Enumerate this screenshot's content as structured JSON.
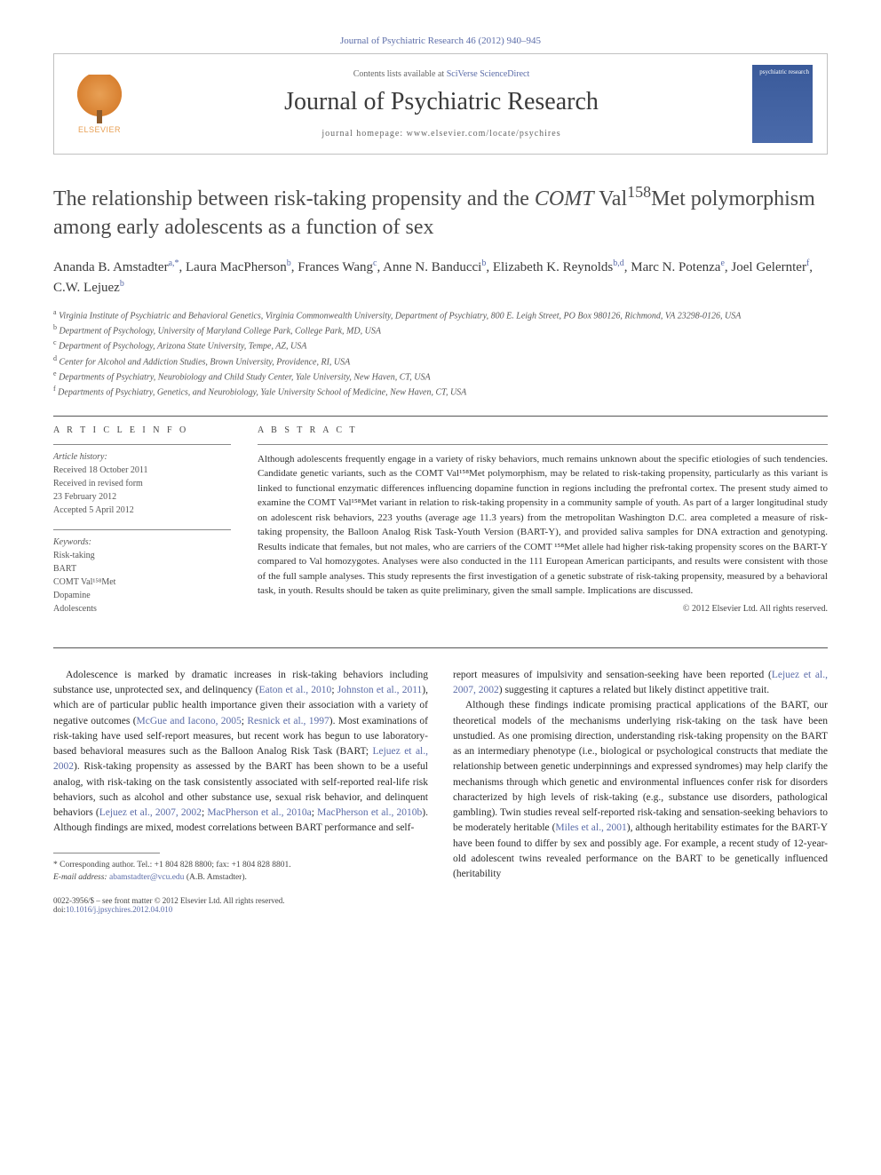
{
  "header": {
    "citation": "Journal of Psychiatric Research 46 (2012) 940–945",
    "contents_prefix": "Contents lists available at ",
    "contents_link": "SciVerse ScienceDirect",
    "journal_name": "Journal of Psychiatric Research",
    "homepage_prefix": "journal homepage: ",
    "homepage_url": "www.elsevier.com/locate/psychires",
    "publisher": "ELSEVIER",
    "cover_label": "psychiatric research"
  },
  "title": {
    "pre": "The relationship between risk-taking propensity and the ",
    "gene": "COMT",
    "mid": " Val",
    "sup": "158",
    "post": "Met polymorphism among early adolescents as a function of sex"
  },
  "authors": [
    {
      "name": "Ananda B. Amstadter",
      "aff": "a,*"
    },
    {
      "name": "Laura MacPherson",
      "aff": "b"
    },
    {
      "name": "Frances Wang",
      "aff": "c"
    },
    {
      "name": "Anne N. Banducci",
      "aff": "b"
    },
    {
      "name": "Elizabeth K. Reynolds",
      "aff": "b,d"
    },
    {
      "name": "Marc N. Potenza",
      "aff": "e"
    },
    {
      "name": "Joel Gelernter",
      "aff": "f"
    },
    {
      "name": "C.W. Lejuez",
      "aff": "b"
    }
  ],
  "affiliations": [
    {
      "key": "a",
      "text": "Virginia Institute of Psychiatric and Behavioral Genetics, Virginia Commonwealth University, Department of Psychiatry, 800 E. Leigh Street, PO Box 980126, Richmond, VA 23298-0126, USA"
    },
    {
      "key": "b",
      "text": "Department of Psychology, University of Maryland College Park, College Park, MD, USA"
    },
    {
      "key": "c",
      "text": "Department of Psychology, Arizona State University, Tempe, AZ, USA"
    },
    {
      "key": "d",
      "text": "Center for Alcohol and Addiction Studies, Brown University, Providence, RI, USA"
    },
    {
      "key": "e",
      "text": "Departments of Psychiatry, Neurobiology and Child Study Center, Yale University, New Haven, CT, USA"
    },
    {
      "key": "f",
      "text": "Departments of Psychiatry, Genetics, and Neurobiology, Yale University School of Medicine, New Haven, CT, USA"
    }
  ],
  "article_info": {
    "heading": "A R T I C L E   I N F O",
    "history_label": "Article history:",
    "history": [
      "Received 18 October 2011",
      "Received in revised form",
      "23 February 2012",
      "Accepted 5 April 2012"
    ],
    "keywords_label": "Keywords:",
    "keywords": [
      "Risk-taking",
      "BART",
      "COMT Val¹⁵⁸Met",
      "Dopamine",
      "Adolescents"
    ]
  },
  "abstract": {
    "heading": "A B S T R A C T",
    "text": "Although adolescents frequently engage in a variety of risky behaviors, much remains unknown about the specific etiologies of such tendencies. Candidate genetic variants, such as the COMT Val¹⁵⁸Met polymorphism, may be related to risk-taking propensity, particularly as this variant is linked to functional enzymatic differences influencing dopamine function in regions including the prefrontal cortex. The present study aimed to examine the COMT Val¹⁵⁸Met variant in relation to risk-taking propensity in a community sample of youth. As part of a larger longitudinal study on adolescent risk behaviors, 223 youths (average age 11.3 years) from the metropolitan Washington D.C. area completed a measure of risk-taking propensity, the Balloon Analog Risk Task-Youth Version (BART-Y), and provided saliva samples for DNA extraction and genotyping. Results indicate that females, but not males, who are carriers of the COMT ¹⁵⁸Met allele had higher risk-taking propensity scores on the BART-Y compared to Val homozygotes. Analyses were also conducted in the 111 European American participants, and results were consistent with those of the full sample analyses. This study represents the first investigation of a genetic substrate of risk-taking propensity, measured by a behavioral task, in youth. Results should be taken as quite preliminary, given the small sample. Implications are discussed.",
    "copyright": "© 2012 Elsevier Ltd. All rights reserved."
  },
  "body": {
    "col1": {
      "p1a": "Adolescence is marked by dramatic increases in risk-taking behaviors including substance use, unprotected sex, and delinquency (",
      "c1": "Eaton et al., 2010",
      "p1b": "; ",
      "c2": "Johnston et al., 2011",
      "p1c": "), which are of particular public health importance given their association with a variety of negative outcomes (",
      "c3": "McGue and Iacono, 2005",
      "p1d": "; ",
      "c4": "Resnick et al., 1997",
      "p1e": "). Most examinations of risk-taking have used self-report measures, but recent work has begun to use laboratory-based behavioral measures such as the Balloon Analog Risk Task (BART; ",
      "c5": "Lejuez et al., 2002",
      "p1f": "). Risk-taking propensity as assessed by the BART has been shown to be a useful analog, with risk-taking on the task consistently associated with self-reported real-life risk behaviors, such as alcohol and other substance use, sexual risk behavior, and delinquent behaviors (",
      "c6": "Lejuez et al., 2007, 2002",
      "p1g": "; ",
      "c7": "MacPherson et al., 2010a",
      "p1h": "; ",
      "c8": "MacPherson et al., 2010b",
      "p1i": "). Although findings are mixed, modest correlations between BART performance and self-"
    },
    "col2": {
      "p1a": "report measures of impulsivity and sensation-seeking have been reported (",
      "c1": "Lejuez et al., 2007, 2002",
      "p1b": ") suggesting it captures a related but likely distinct appetitive trait.",
      "p2a": "Although these findings indicate promising practical applications of the BART, our theoretical models of the mechanisms underlying risk-taking on the task have been unstudied. As one promising direction, understanding risk-taking propensity on the BART as an intermediary phenotype (i.e., biological or psychological constructs that mediate the relationship between genetic underpinnings and expressed syndromes) may help clarify the mechanisms through which genetic and environmental influences confer risk for disorders characterized by high levels of risk-taking (e.g., substance use disorders, pathological gambling). Twin studies reveal self-reported risk-taking and sensation-seeking behaviors to be moderately heritable (",
      "c2": "Miles et al., 2001",
      "p2b": "), although heritability estimates for the BART-Y have been found to differ by sex and possibly age. For example, a recent study of 12-year-old adolescent twins revealed performance on the BART to be genetically influenced (heritability"
    }
  },
  "footnotes": {
    "corr_label": "* Corresponding author. Tel.: +1 804 828 8800; fax: +1 804 828 8801.",
    "email_label": "E-mail address: ",
    "email": "abamstadter@vcu.edu",
    "email_suffix": " (A.B. Amstadter)."
  },
  "footer": {
    "issn": "0022-3956/$ – see front matter © 2012 Elsevier Ltd. All rights reserved.",
    "doi_prefix": "doi:",
    "doi": "10.1016/j.jpsychires.2012.04.010"
  }
}
